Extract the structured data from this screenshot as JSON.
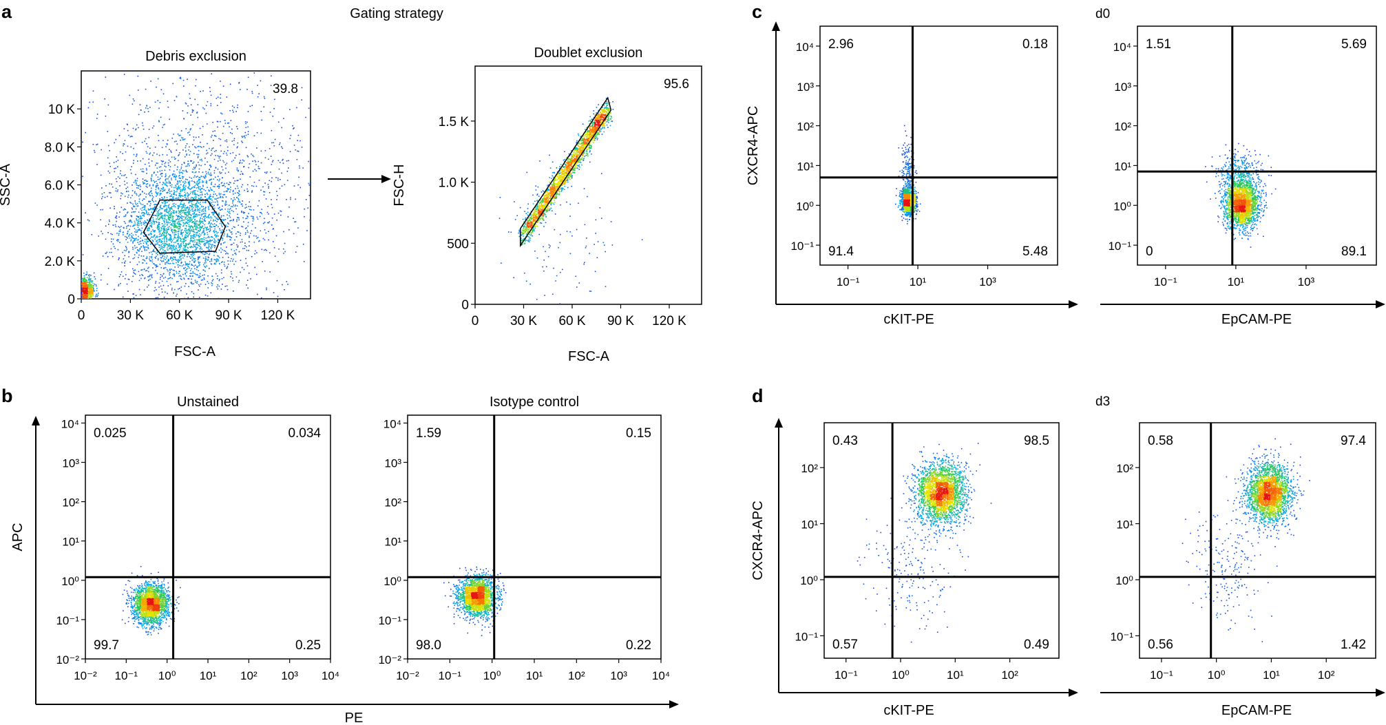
{
  "panel_labels": [
    "a",
    "b",
    "c",
    "d"
  ],
  "figure_title": "Gating strategy",
  "chart_data": [
    {
      "id": "a1",
      "type": "scatter",
      "title": "Debris exclusion",
      "xlabel": "FSC-A",
      "ylabel": "SSC-A",
      "xlim": [
        0,
        140000
      ],
      "ylim": [
        0,
        12000
      ],
      "xticks": [
        {
          "v": 0,
          "label": "0"
        },
        {
          "v": 30000,
          "label": "30 K"
        },
        {
          "v": 60000,
          "label": "60 K"
        },
        {
          "v": 90000,
          "label": "90 K"
        },
        {
          "v": 120000,
          "label": "120 K"
        }
      ],
      "yticks": [
        {
          "v": 0,
          "label": "0"
        },
        {
          "v": 2000,
          "label": "2.0 K"
        },
        {
          "v": 4000,
          "label": "4.0 K"
        },
        {
          "v": 6000,
          "label": "6.0 K"
        },
        {
          "v": 8000,
          "label": "8.0 K"
        },
        {
          "v": 10000,
          "label": "10 K"
        }
      ],
      "gate": {
        "type": "polygon",
        "points": [
          [
            38000,
            3500
          ],
          [
            48000,
            5200
          ],
          [
            77000,
            5200
          ],
          [
            88000,
            3800
          ],
          [
            82000,
            2500
          ],
          [
            48000,
            2400
          ]
        ],
        "percent": "39.8"
      },
      "populations": [
        {
          "center": [
            60000,
            3800
          ],
          "spread": [
            18000,
            1600
          ],
          "n": 2600
        },
        {
          "center": [
            2000,
            400
          ],
          "spread": [
            3000,
            350
          ],
          "n": 700
        },
        {
          "center": [
            75000,
            6000
          ],
          "spread": [
            38000,
            3000
          ],
          "n": 1400
        }
      ]
    },
    {
      "id": "a2",
      "type": "scatter",
      "title": "Doublet exclusion",
      "xlabel": "FSC-A",
      "ylabel": "FSC-H",
      "xlim": [
        0,
        140000
      ],
      "ylim": [
        0,
        1950
      ],
      "xticks": [
        {
          "v": 0,
          "label": "0"
        },
        {
          "v": 30000,
          "label": "30 K"
        },
        {
          "v": 60000,
          "label": "60 K"
        },
        {
          "v": 90000,
          "label": "90 K"
        },
        {
          "v": 120000,
          "label": "120 K"
        }
      ],
      "yticks": [
        {
          "v": 0,
          "label": "0"
        },
        {
          "v": 500,
          "label": "500"
        },
        {
          "v": 1000,
          "label": "1.0 K"
        },
        {
          "v": 1500,
          "label": "1.5 K"
        }
      ],
      "gate": {
        "type": "polygon",
        "points": [
          [
            28000,
            620
          ],
          [
            28000,
            480
          ],
          [
            84000,
            1590
          ],
          [
            82000,
            1690
          ]
        ],
        "percent": "95.6"
      },
      "populations": [
        {
          "type": "diagonal",
          "x0": 29000,
          "x1": 82000,
          "y0": 560,
          "y1": 1600,
          "width": 45,
          "n": 2200
        },
        {
          "center": [
            50000,
            600
          ],
          "spread": [
            20000,
            300
          ],
          "n": 120
        }
      ]
    },
    {
      "id": "b1",
      "type": "scatter",
      "title": "Unstained",
      "xlabel": "PE",
      "ylabel": "APC",
      "log": true,
      "xlim": [
        -2,
        4
      ],
      "ylim": [
        -2,
        4.2
      ],
      "xticks": [
        -2,
        -1,
        0,
        1,
        2,
        3,
        4
      ],
      "yticks": [
        -2,
        -1,
        0,
        1,
        2,
        3,
        4
      ],
      "quadrant": {
        "x": 0.15,
        "y": 0.08
      },
      "quadrant_values": {
        "ul": "0.025",
        "ur": "0.034",
        "ll": "99.7",
        "lr": "0.25"
      },
      "populations": [
        {
          "center": [
            -0.4,
            -0.6
          ],
          "spread": [
            0.22,
            0.25
          ],
          "n": 2200
        }
      ]
    },
    {
      "id": "b2",
      "type": "scatter",
      "title": "Isotype control",
      "xlabel": "PE",
      "ylabel": "APC",
      "log": true,
      "xlim": [
        -2,
        4
      ],
      "ylim": [
        -2,
        4.2
      ],
      "xticks": [
        -2,
        -1,
        0,
        1,
        2,
        3,
        4
      ],
      "yticks": [
        -2,
        -1,
        0,
        1,
        2,
        3,
        4
      ],
      "quadrant": {
        "x": 0.05,
        "y": 0.08
      },
      "quadrant_values": {
        "ul": "1.59",
        "ur": "0.15",
        "ll": "98.0",
        "lr": "0.22"
      },
      "populations": [
        {
          "center": [
            -0.35,
            -0.4
          ],
          "spread": [
            0.22,
            0.25
          ],
          "n": 2200
        }
      ]
    },
    {
      "id": "c1",
      "type": "scatter",
      "title": "",
      "xlabel": "cKIT-PE",
      "ylabel": "CXCR4-APC",
      "log": true,
      "xlim": [
        -1.8,
        5
      ],
      "ylim": [
        -1.5,
        4.5
      ],
      "xticks": [
        -1,
        1,
        3
      ],
      "yticks": [
        -1,
        0,
        1,
        2,
        3,
        4
      ],
      "quadrant": {
        "x": 0.85,
        "y": 0.7
      },
      "quadrant_values": {
        "ul": "2.96",
        "ur": "0.18",
        "ll": "91.4",
        "lr": "5.48"
      },
      "populations": [
        {
          "center": [
            0.72,
            0.1
          ],
          "spread": [
            0.1,
            0.16
          ],
          "n": 1600
        },
        {
          "center": [
            0.72,
            0.9
          ],
          "spread": [
            0.1,
            0.4
          ],
          "n": 200
        }
      ]
    },
    {
      "id": "c2",
      "type": "scatter",
      "title": "",
      "sample": "d0",
      "xlabel": "EpCAM-PE",
      "ylabel": "",
      "log": true,
      "xlim": [
        -1.8,
        5
      ],
      "ylim": [
        -1.5,
        4.5
      ],
      "xticks": [
        -1,
        1,
        3
      ],
      "yticks": [
        -1,
        0,
        1,
        2,
        3,
        4
      ],
      "quadrant": {
        "x": 0.9,
        "y": 0.85
      },
      "quadrant_values": {
        "ul": "1.51",
        "ur": "5.69",
        "ll": "0",
        "lr": "89.1"
      },
      "populations": [
        {
          "center": [
            1.15,
            0.05
          ],
          "spread": [
            0.25,
            0.3
          ],
          "n": 2200
        },
        {
          "center": [
            1.1,
            0.9
          ],
          "spread": [
            0.35,
            0.25
          ],
          "n": 300
        }
      ]
    },
    {
      "id": "d1",
      "type": "scatter",
      "title": "",
      "xlabel": "cKIT-PE",
      "ylabel": "CXCR4-APC",
      "log": true,
      "xlim": [
        -1.4,
        2.9
      ],
      "ylim": [
        -1.4,
        2.8
      ],
      "xticks": [
        -1,
        0,
        1,
        2
      ],
      "yticks": [
        -1,
        0,
        1,
        2
      ],
      "quadrant": {
        "x": -0.15,
        "y": 0.05
      },
      "quadrant_values": {
        "ul": "0.43",
        "ur": "98.5",
        "ll": "0.57",
        "lr": "0.49"
      },
      "populations": [
        {
          "center": [
            0.72,
            1.55
          ],
          "spread": [
            0.22,
            0.28
          ],
          "n": 2600
        },
        {
          "center": [
            0.2,
            0.2
          ],
          "spread": [
            0.4,
            0.5
          ],
          "n": 200
        }
      ]
    },
    {
      "id": "d2",
      "type": "scatter",
      "title": "",
      "sample": "d3",
      "xlabel": "EpCAM-PE",
      "ylabel": "",
      "log": true,
      "xlim": [
        -1.4,
        2.9
      ],
      "ylim": [
        -1.4,
        2.8
      ],
      "xticks": [
        -1,
        0,
        1,
        2
      ],
      "yticks": [
        -1,
        0,
        1,
        2
      ],
      "quadrant": {
        "x": -0.1,
        "y": 0.05
      },
      "quadrant_values": {
        "ul": "0.58",
        "ur": "97.4",
        "ll": "0.56",
        "lr": "1.42"
      },
      "populations": [
        {
          "center": [
            0.95,
            1.55
          ],
          "spread": [
            0.2,
            0.26
          ],
          "n": 2600
        },
        {
          "center": [
            0.2,
            0.3
          ],
          "spread": [
            0.35,
            0.5
          ],
          "n": 200
        }
      ]
    }
  ]
}
